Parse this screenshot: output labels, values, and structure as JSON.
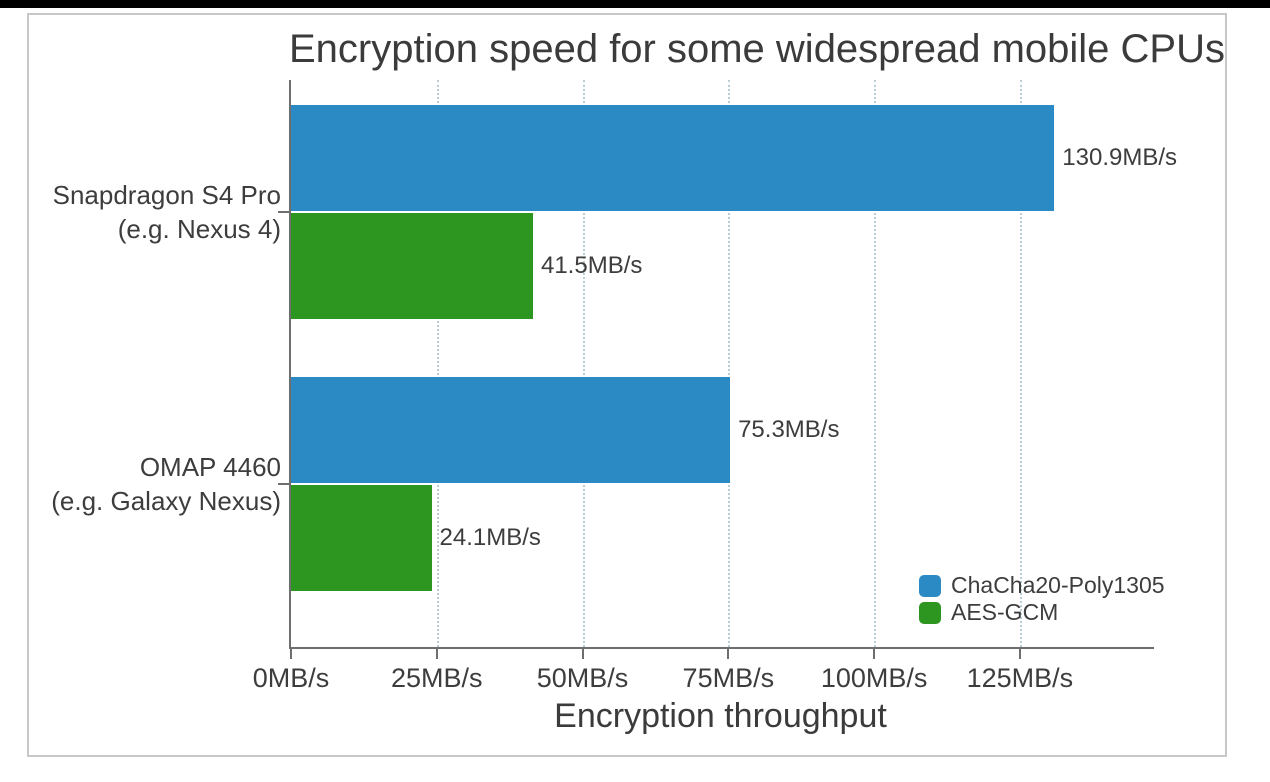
{
  "page": {
    "top_strip_color": "#000000",
    "frame_border_color": "#c8c8c8",
    "background": "#ffffff"
  },
  "chart_data": {
    "type": "bar",
    "orientation": "horizontal",
    "title": "Encryption speed for some widespread mobile CPUs",
    "xlabel": "Encryption throughput",
    "categories": [
      {
        "lines": [
          "Snapdragon S4 Pro",
          "(e.g. Nexus 4)"
        ]
      },
      {
        "lines": [
          "OMAP 4460",
          "(e.g. Galaxy Nexus)"
        ]
      }
    ],
    "series": [
      {
        "name": "ChaCha20-Poly1305",
        "color": "#2b8ac4",
        "values": [
          130.9,
          75.3
        ],
        "value_labels": [
          "130.9MB/s",
          "75.3MB/s"
        ]
      },
      {
        "name": "AES-GCM",
        "color": "#2d9621",
        "values": [
          41.5,
          24.1
        ],
        "value_labels": [
          "41.5MB/s",
          "24.1MB/s"
        ]
      }
    ],
    "x_axis": {
      "ticks": [
        0,
        25,
        50,
        75,
        100,
        125
      ],
      "tick_labels": [
        "0MB/s",
        "25MB/s",
        "50MB/s",
        "75MB/s",
        "100MB/s",
        "125MB/s"
      ],
      "min": 0,
      "max": 148,
      "grid": "dotted vertical"
    },
    "legend": {
      "position": "lower right",
      "entries": [
        "ChaCha20-Poly1305",
        "AES-GCM"
      ]
    },
    "colors": {
      "text": "#3d3d3d",
      "axis_line": "#6e6e6e",
      "gridline": "#b9cdd6"
    }
  }
}
